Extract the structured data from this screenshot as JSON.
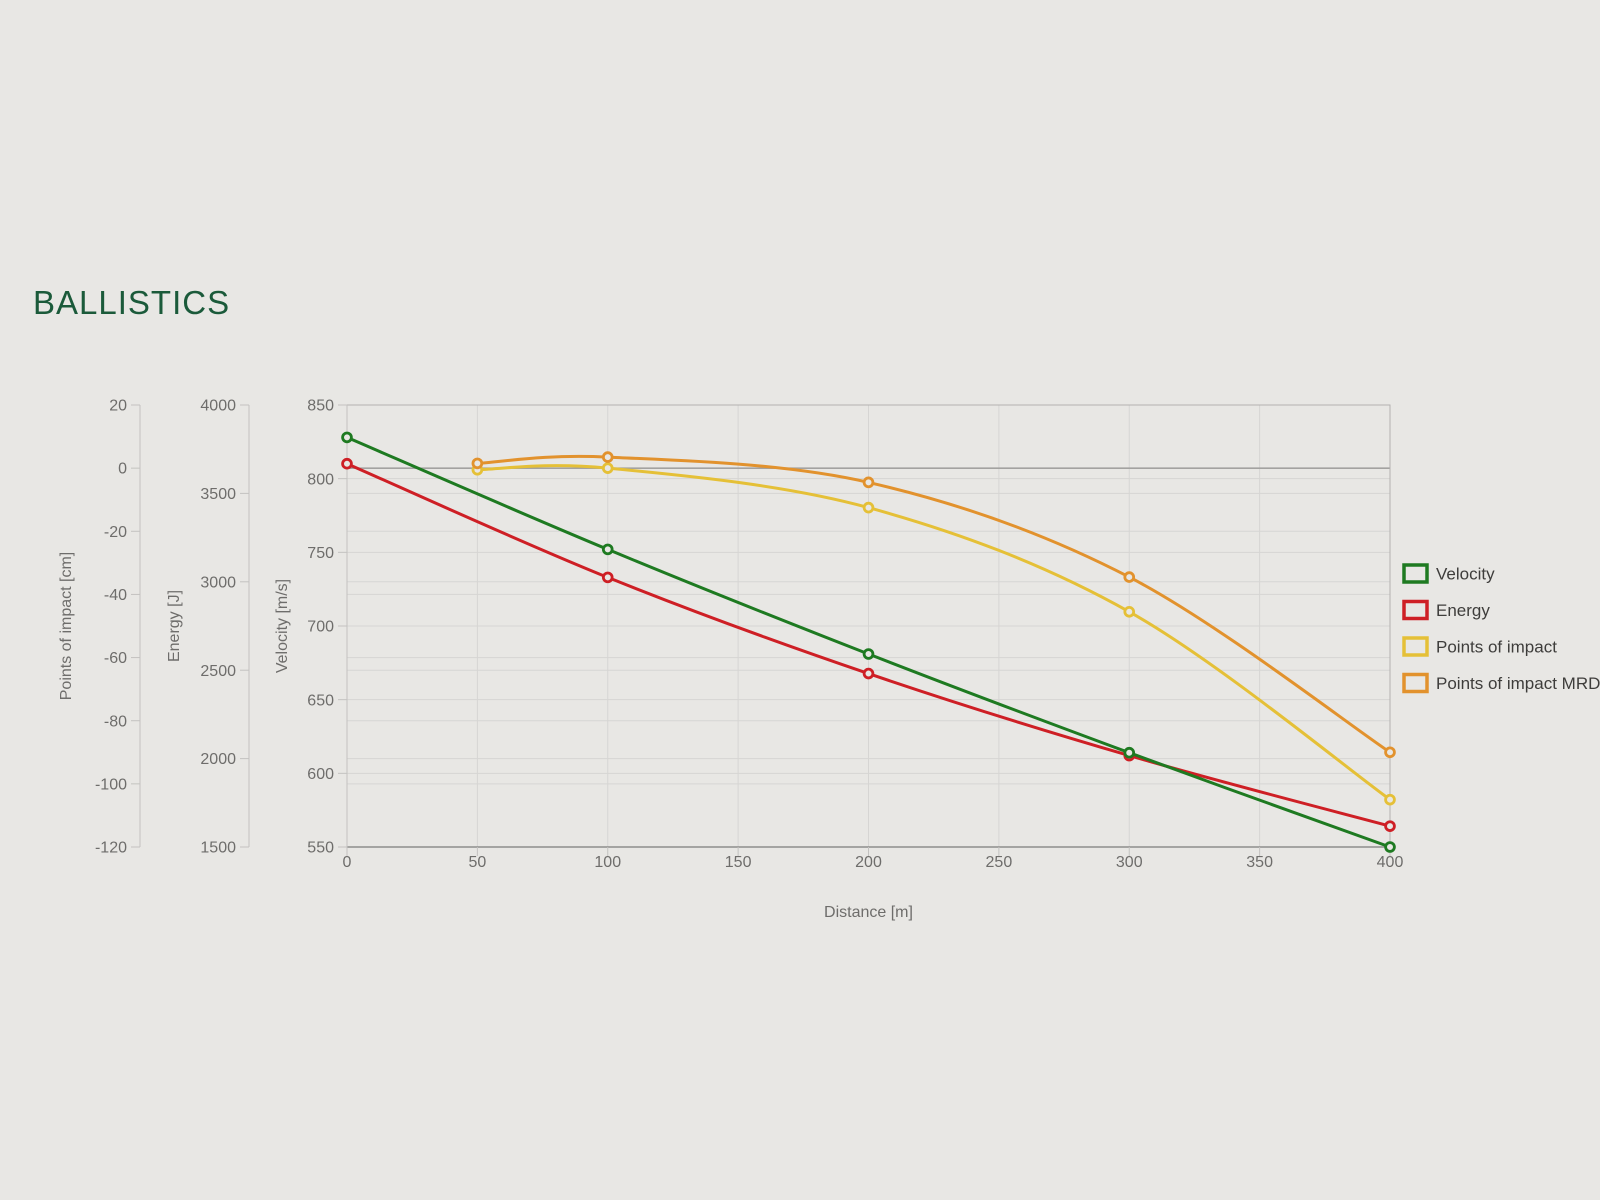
{
  "page": {
    "title": "BALLISTICS",
    "title_color": "#1b5a3a",
    "background": "#e8e7e4"
  },
  "chart_data": {
    "type": "line",
    "title": "BALLISTICS",
    "xlabel": "Distance [m]",
    "x_range": [
      0,
      400
    ],
    "x_ticks": [
      0,
      50,
      100,
      150,
      200,
      250,
      300,
      350,
      400
    ],
    "grid": true,
    "legend_position": "right",
    "y_axes": [
      {
        "id": "poi",
        "label": "Points of impact [cm]",
        "range": [
          -120,
          20
        ],
        "ticks": [
          20,
          0,
          -20,
          -40,
          -60,
          -80,
          -100,
          -120
        ],
        "zero_line": true
      },
      {
        "id": "energy",
        "label": "Energy [J]",
        "range": [
          1500,
          4000
        ],
        "ticks": [
          4000,
          3500,
          3000,
          2500,
          2000,
          1500
        ]
      },
      {
        "id": "velocity",
        "label": "Velocity [m/s]",
        "range": [
          550,
          850
        ],
        "ticks": [
          850,
          800,
          750,
          700,
          650,
          600,
          550
        ]
      }
    ],
    "series": [
      {
        "name": "Velocity",
        "axis": "velocity",
        "color": "#1e7a21",
        "x": [
          0,
          100,
          200,
          300,
          400
        ],
        "values": [
          828,
          752,
          681,
          614,
          550
        ]
      },
      {
        "name": "Energy",
        "axis": "energy",
        "color": "#ce1f25",
        "x": [
          0,
          100,
          200,
          300,
          400
        ],
        "values": [
          3668,
          3025,
          2481,
          2017,
          1618
        ]
      },
      {
        "name": "Points of impact",
        "axis": "poi",
        "color": "#e5c037",
        "x": [
          50,
          100,
          200,
          300,
          400
        ],
        "values": [
          -0.5,
          0,
          -12.5,
          -45.5,
          -105
        ]
      },
      {
        "name": "Points of impact MRD",
        "axis": "poi",
        "color": "#e2922d",
        "x": [
          50,
          100,
          200,
          300,
          400
        ],
        "values": [
          1.5,
          3.5,
          -4.5,
          -34.5,
          -90
        ]
      }
    ]
  }
}
